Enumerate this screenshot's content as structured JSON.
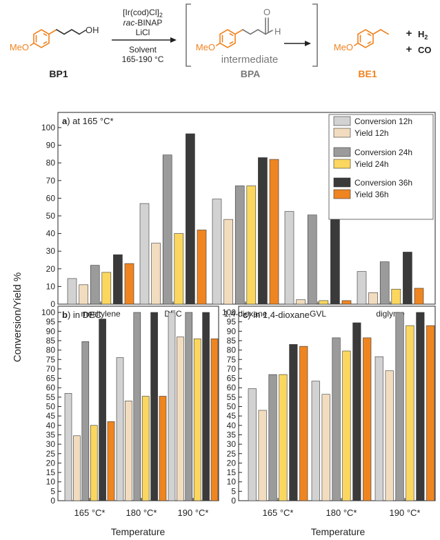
{
  "scheme": {
    "reagents": [
      "[Ir(cod)Cl]",
      "2",
      "rac",
      "-BINAP",
      "LiCl",
      "Solvent",
      "165-190 °C"
    ],
    "substituent": "MeO",
    "hydroxyl": "OH",
    "carbonyl_o": "O",
    "aldehyde_h": "H",
    "intermediate_caption": "intermediate",
    "compounds": {
      "bp1": "BP1",
      "bpa": "BPA",
      "be1": "BE1"
    },
    "byproducts": {
      "plus": "+",
      "h2": "H",
      "h2_sub": "2",
      "co": "CO"
    },
    "colors": {
      "orange": "#f0821e",
      "gray": "#777777",
      "black": "#222222"
    }
  },
  "legend": [
    {
      "label": "Conversion 12h",
      "color": "#d2d2d2"
    },
    {
      "label": "Yield 12h",
      "color": "#f2dcbf"
    },
    {
      "label": "Conversion 24h",
      "color": "#9b9b9b"
    },
    {
      "label": "Yield 24h",
      "color": "#fbd75f"
    },
    {
      "label": "Conversion 36h",
      "color": "#3a3a3a"
    },
    {
      "label": "Yield 36h",
      "color": "#ef8521"
    }
  ],
  "shared_ylabel": "Conversion/Yield %",
  "chart_data": [
    {
      "type": "bar",
      "panel_label": "a",
      "title": ") at 165 °C*",
      "categories": [
        "mesitylene",
        "DEC",
        "1,4-dioxane",
        "GVL",
        "diglyme"
      ],
      "ylim": [
        0,
        100
      ],
      "yticks": [
        0,
        10,
        20,
        30,
        40,
        50,
        60,
        70,
        80,
        90,
        100
      ],
      "series": [
        {
          "name": "Conversion 12h",
          "values": [
            14.5,
            57,
            59.5,
            52.5,
            18.5
          ]
        },
        {
          "name": "Yield 12h",
          "values": [
            11,
            34.5,
            48,
            2.5,
            6.5
          ]
        },
        {
          "name": "Conversion 24h",
          "values": [
            22,
            84.5,
            67,
            50.5,
            24
          ]
        },
        {
          "name": "Yield 24h",
          "values": [
            18,
            40,
            67,
            2,
            8.5
          ]
        },
        {
          "name": "Conversion 36h",
          "values": [
            28,
            96.5,
            83,
            52,
            29.5
          ]
        },
        {
          "name": "Yield 36h",
          "values": [
            23,
            42,
            82,
            2,
            9
          ]
        }
      ]
    },
    {
      "type": "bar",
      "panel_label": "b",
      "title": ") in DEC",
      "categories": [
        "165 °C*",
        "180 °C*",
        "190 °C*"
      ],
      "xlabel": "Temperature",
      "ylim": [
        0,
        100
      ],
      "yticks": [
        0,
        5,
        10,
        15,
        20,
        25,
        30,
        35,
        40,
        45,
        50,
        55,
        60,
        65,
        70,
        75,
        80,
        85,
        90,
        95,
        100
      ],
      "series": [
        {
          "name": "Conversion 12h",
          "values": [
            57,
            76,
            100
          ]
        },
        {
          "name": "Yield 12h",
          "values": [
            34.5,
            53,
            87
          ]
        },
        {
          "name": "Conversion 24h",
          "values": [
            84.5,
            100,
            100
          ]
        },
        {
          "name": "Yield 24h",
          "values": [
            40,
            55.5,
            86
          ]
        },
        {
          "name": "Conversion 36h",
          "values": [
            96.5,
            100,
            100
          ]
        },
        {
          "name": "Yield 36h",
          "values": [
            42,
            55.5,
            86
          ]
        }
      ]
    },
    {
      "type": "bar",
      "panel_label": "c",
      "title": ") in 1,4-dioxane",
      "categories": [
        "165 °C*",
        "180 °C*",
        "190 °C*"
      ],
      "xlabel": "Temperature",
      "ylim": [
        0,
        100
      ],
      "yticks": [
        0,
        5,
        10,
        15,
        20,
        25,
        30,
        35,
        40,
        45,
        50,
        55,
        60,
        65,
        70,
        75,
        80,
        85,
        90,
        95,
        100
      ],
      "series": [
        {
          "name": "Conversion 12h",
          "values": [
            59.5,
            63.5,
            76.5
          ]
        },
        {
          "name": "Yield 12h",
          "values": [
            48,
            56.5,
            69
          ]
        },
        {
          "name": "Conversion 24h",
          "values": [
            67,
            86.5,
            100
          ]
        },
        {
          "name": "Yield 24h",
          "values": [
            67,
            79.5,
            93
          ]
        },
        {
          "name": "Conversion 36h",
          "values": [
            83,
            94.5,
            100
          ]
        },
        {
          "name": "Yield 36h",
          "values": [
            82,
            86.5,
            93
          ]
        }
      ]
    }
  ]
}
